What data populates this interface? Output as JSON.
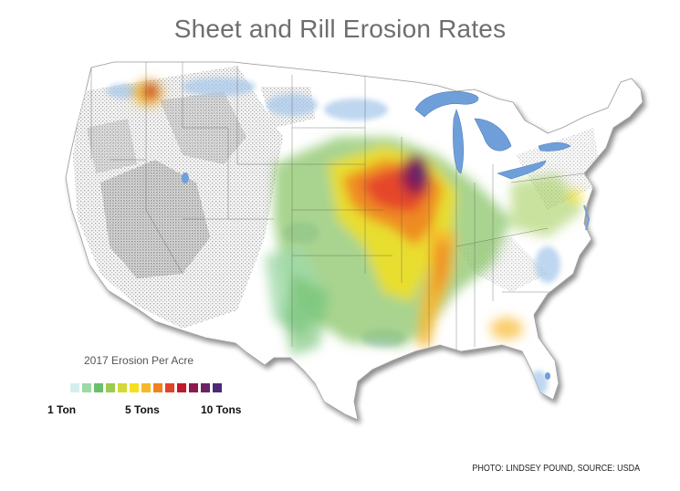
{
  "title": "Sheet and Rill Erosion Rates",
  "legend": {
    "title": "2017 Erosion Per Acre",
    "colors": [
      "#d5efee",
      "#9fd8a7",
      "#6cc06c",
      "#9ccb50",
      "#d3d934",
      "#f4e11e",
      "#f6b82a",
      "#ef8220",
      "#e4422a",
      "#c0192c",
      "#8c1a4f",
      "#6b2466",
      "#4c2a78"
    ],
    "labels": [
      "1 Ton",
      "5 Tons",
      "10 Tons"
    ]
  },
  "credit": "PHOTO: LINDSEY POUND, SOURCE: USDA"
}
